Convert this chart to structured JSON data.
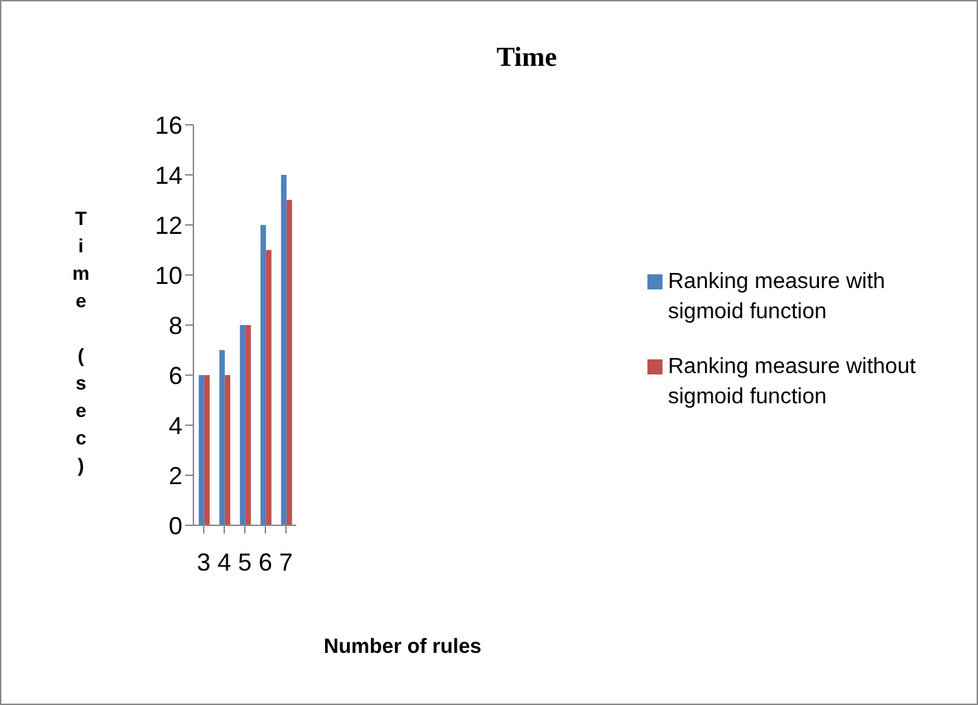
{
  "chart_data": {
    "type": "bar",
    "title": "Time",
    "xlabel": "Number of rules",
    "ylabel": "Time (sec)",
    "categories": [
      "3",
      "4",
      "5",
      "6",
      "7"
    ],
    "series": [
      {
        "name": "Ranking measure with sigmoid function",
        "color": "#4f81bd",
        "values": [
          6,
          7,
          8,
          12,
          14
        ]
      },
      {
        "name": "Ranking measure without sigmoid function",
        "color": "#c0504d",
        "values": [
          6,
          6,
          8,
          11,
          13
        ]
      }
    ],
    "ylim": [
      0,
      16
    ],
    "yticks": [
      0,
      2,
      4,
      6,
      8,
      10,
      12,
      14,
      16
    ],
    "grid": false,
    "legend": "right"
  }
}
